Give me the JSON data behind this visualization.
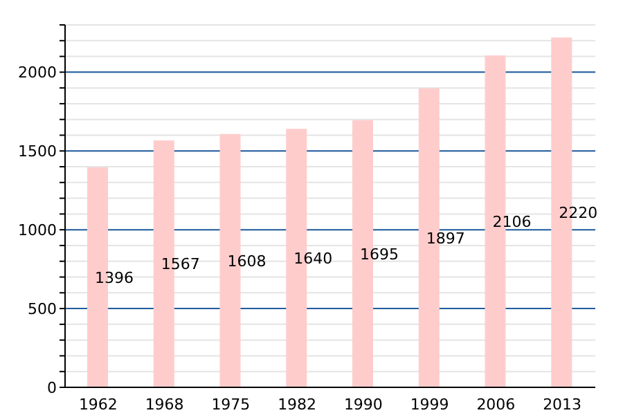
{
  "chart_data": {
    "type": "bar",
    "categories": [
      "1962",
      "1968",
      "1975",
      "1982",
      "1990",
      "1999",
      "2006",
      "2013"
    ],
    "values": [
      1396,
      1567,
      1608,
      1640,
      1695,
      1897,
      2106,
      2220
    ],
    "color": "#ffcccc",
    "data_labels": true,
    "grid": "y",
    "ylim": [
      0,
      2300
    ],
    "yticks": [
      0,
      {
        "value": 100,
        "label": null
      },
      {
        "value": 200,
        "label": null
      },
      {
        "value": 300,
        "label": null
      },
      {
        "value": 400,
        "label": null
      },
      500,
      {
        "value": 600,
        "label": null
      },
      {
        "value": 700,
        "label": null
      },
      {
        "value": 800,
        "label": null
      },
      {
        "value": 900,
        "label": null
      },
      1000,
      {
        "value": 1100,
        "label": null
      },
      {
        "value": 1200,
        "label": null
      },
      {
        "value": 1300,
        "label": null
      },
      {
        "value": 1400,
        "label": null
      },
      1500,
      {
        "value": 1600,
        "label": null
      },
      {
        "value": 1700,
        "label": null
      },
      {
        "value": 1800,
        "label": null
      },
      {
        "value": 1900,
        "label": null
      },
      2000,
      {
        "value": 2100,
        "label": null
      },
      {
        "value": 2200,
        "label": null
      },
      {
        "value": 2300,
        "label": null
      }
    ]
  }
}
